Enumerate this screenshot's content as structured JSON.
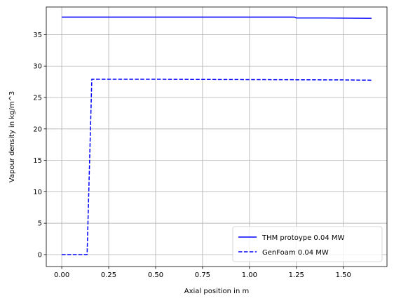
{
  "chart_data": {
    "type": "line",
    "title": "",
    "xlabel": "Axial position in m",
    "ylabel": "Vapour density in kg/m^3",
    "xlim": [
      -0.0825,
      1.7325
    ],
    "ylim": [
      -1.9,
      39.4
    ],
    "xticks": [
      0.0,
      0.25,
      0.5,
      0.75,
      1.0,
      1.25,
      1.5
    ],
    "xtick_labels": [
      "0.00",
      "0.25",
      "0.50",
      "0.75",
      "1.00",
      "1.25",
      "1.50"
    ],
    "yticks": [
      0,
      5,
      10,
      15,
      20,
      25,
      30,
      35
    ],
    "ytick_labels": [
      "0",
      "5",
      "10",
      "15",
      "20",
      "25",
      "30",
      "35"
    ],
    "grid": true,
    "legend_position": "lower-right",
    "series": [
      {
        "name": "THM protoype 0.04 MW",
        "color": "#0000ff",
        "style": "solid",
        "x": [
          0.0,
          0.25,
          0.5,
          0.75,
          1.0,
          1.24,
          1.25,
          1.4,
          1.65
        ],
        "y": [
          37.8,
          37.8,
          37.8,
          37.8,
          37.8,
          37.8,
          37.65,
          37.65,
          37.6
        ]
      },
      {
        "name": "GenFoam 0.04 MW",
        "color": "#0000ff",
        "style": "dashed",
        "x": [
          0.0,
          0.135,
          0.16,
          0.5,
          1.0,
          1.5,
          1.65
        ],
        "y": [
          0.0,
          0.0,
          27.9,
          27.9,
          27.85,
          27.8,
          27.75
        ]
      }
    ]
  }
}
